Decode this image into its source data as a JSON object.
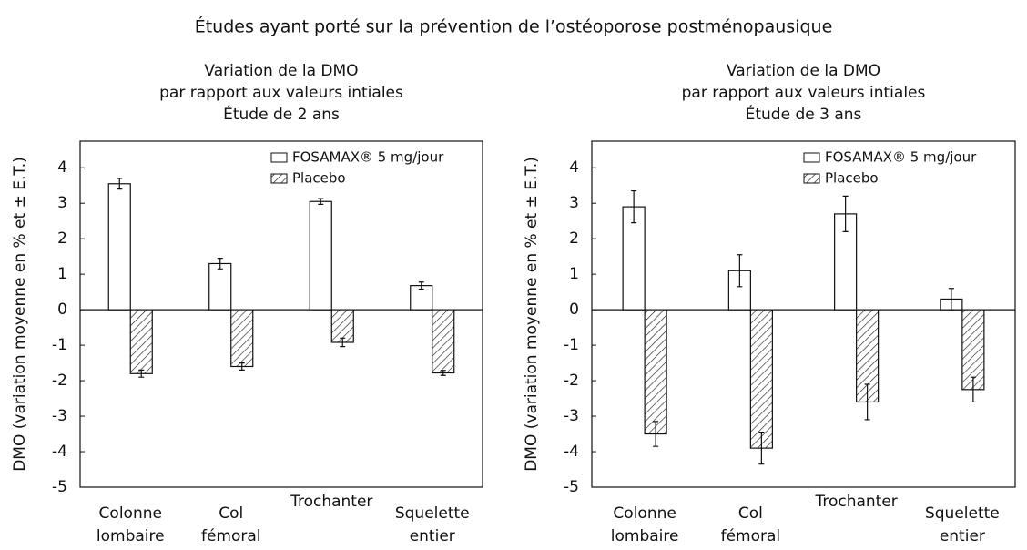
{
  "title": "Études ayant porté sur la prévention de l’ostéoporose postménopausique",
  "chart_data": [
    {
      "type": "bar",
      "title": [
        "Variation de la DMO",
        "par rapport aux valeurs intiales",
        "Étude de 2 ans"
      ],
      "y_label": "DMO (variation moyenne en % et ± E.T.)",
      "categories": [
        [
          "Colonne",
          "lombaire"
        ],
        [
          "Col",
          "fémoral"
        ],
        [
          "Trochanter"
        ],
        [
          "Squelette",
          "entier"
        ]
      ],
      "series": [
        {
          "name": "FOSAMAX® 5 mg/jour",
          "color": "#ffffff",
          "hatch": false,
          "values": [
            3.55,
            1.3,
            3.05,
            0.68
          ],
          "errors": [
            0.15,
            0.15,
            0.08,
            0.1
          ]
        },
        {
          "name": "Placebo",
          "color": "#ffffff",
          "hatch": true,
          "values": [
            -1.8,
            -1.6,
            -0.92,
            -1.78
          ],
          "errors": [
            0.1,
            0.1,
            0.12,
            0.07
          ]
        }
      ],
      "ylim": [
        -5,
        4.75
      ],
      "yticks": [
        -5,
        -4,
        -3,
        -2,
        -1,
        0,
        1,
        2,
        3,
        4
      ],
      "legend": "upper right"
    },
    {
      "type": "bar",
      "title": [
        "Variation de la DMO",
        "par rapport aux valeurs intiales",
        "Étude de 3 ans"
      ],
      "y_label": "DMO (variation moyenne en % et ± E.T.)",
      "categories": [
        [
          "Colonne",
          "lombaire"
        ],
        [
          "Col",
          "fémoral"
        ],
        [
          "Trochanter"
        ],
        [
          "Squelette",
          "entier"
        ]
      ],
      "series": [
        {
          "name": "FOSAMAX® 5 mg/jour",
          "color": "#ffffff",
          "hatch": false,
          "values": [
            2.9,
            1.1,
            2.7,
            0.3
          ],
          "errors": [
            0.45,
            0.45,
            0.5,
            0.3
          ]
        },
        {
          "name": "Placebo",
          "color": "#ffffff",
          "hatch": true,
          "values": [
            -3.5,
            -3.9,
            -2.6,
            -2.25
          ],
          "errors": [
            0.35,
            0.45,
            0.5,
            0.35
          ]
        }
      ],
      "ylim": [
        -5,
        4.75
      ],
      "yticks": [
        -5,
        -4,
        -3,
        -2,
        -1,
        0,
        1,
        2,
        3,
        4
      ],
      "legend": "upper right"
    }
  ]
}
